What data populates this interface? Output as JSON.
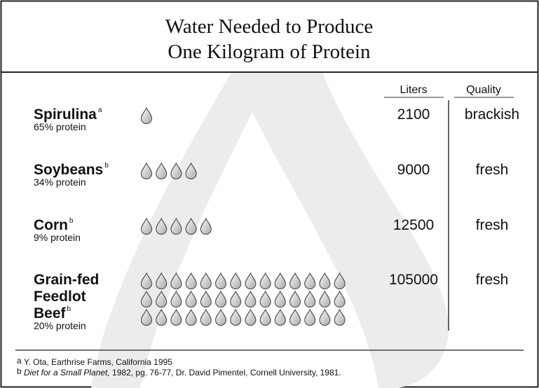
{
  "chart_data": {
    "type": "pictogram",
    "title": [
      "Water Needed to Produce",
      "One Kilogram of Protein"
    ],
    "columns": [
      "Liters",
      "Quality"
    ],
    "rows": [
      {
        "name": [
          "Spirulina"
        ],
        "note": "a",
        "protein": "65% protein",
        "liters": 2100,
        "quality": "brackish",
        "drops": 1
      },
      {
        "name": [
          "Soybeans"
        ],
        "note": "b",
        "protein": "34% protein",
        "liters": 9000,
        "quality": "fresh",
        "drops": 4
      },
      {
        "name": [
          "Corn"
        ],
        "note": "b",
        "protein": "9% protein",
        "liters": 12500,
        "quality": "fresh",
        "drops": 5
      },
      {
        "name": [
          "Grain-fed",
          "Feedlot",
          "Beef"
        ],
        "note": "b",
        "protein": "20% protein",
        "liters": 105000,
        "quality": "fresh",
        "drops": 42
      }
    ],
    "footnotes": [
      {
        "mark": "a",
        "title": "",
        "text": "Y. Ota, Earthrise Farms, California 1995"
      },
      {
        "mark": "b",
        "title": "Diet for a Small Planet,",
        "text": " 1982, pg. 76-77, Dr. David Pimentel, Cornell University, 1981."
      }
    ]
  }
}
